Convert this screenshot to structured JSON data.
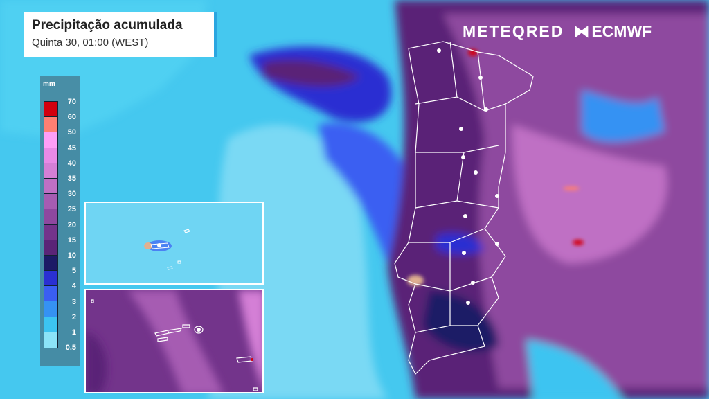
{
  "header": {
    "title": "Precipitação acumulada",
    "subtitle": "Quinta 30, 01:00 (WEST)"
  },
  "logos": {
    "meteored": "METEORED",
    "ecmwf": "ECMWF"
  },
  "legend": {
    "unit": "mm",
    "labels": [
      "70",
      "60",
      "50",
      "45",
      "40",
      "35",
      "30",
      "25",
      "20",
      "15",
      "10",
      "5",
      "4",
      "3",
      "2",
      "1",
      "0.5"
    ],
    "colors": [
      "#d3000e",
      "#ff7f72",
      "#ff9ef7",
      "#e88ae6",
      "#d47fd6",
      "#bf70c4",
      "#a65cb2",
      "#8e489f",
      "#73348b",
      "#5a2477",
      "#1c1a66",
      "#2a2fd2",
      "#3a5ef2",
      "#3592f3",
      "#3cc4f1",
      "#8be4f8"
    ]
  },
  "colors": {
    "ocean": "#45c8ef",
    "ocean_light": "#79d8f4",
    "heavy": "#7a3fa6"
  }
}
